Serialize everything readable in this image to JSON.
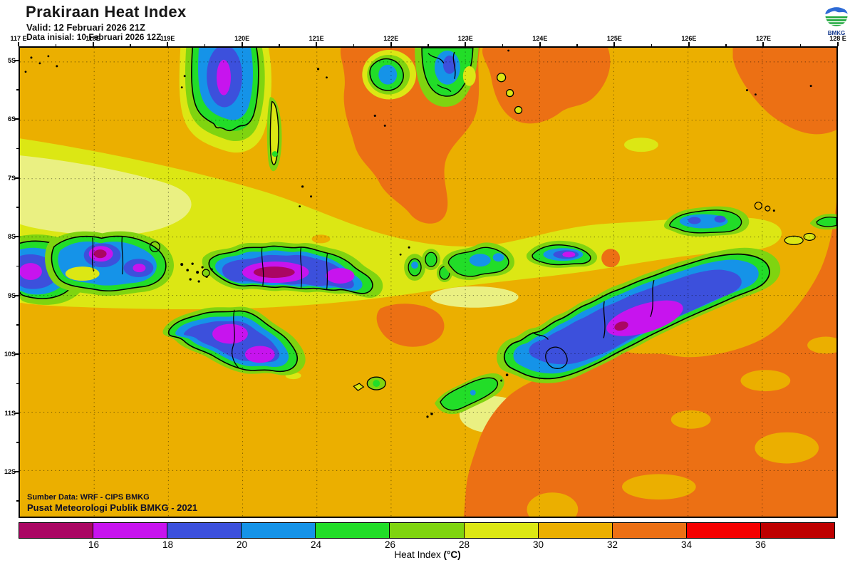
{
  "header": {
    "title": "Prakiraan Heat Index",
    "valid_line": "Valid: 12 Februari 2026 21Z",
    "init_line": "Data inisial: 10 Februari 2026 12Z"
  },
  "logo": {
    "label": "BMKG"
  },
  "map": {
    "lon_labels": [
      "117 E",
      "118E",
      "119E",
      "120E",
      "121E",
      "122E",
      "123E",
      "124E",
      "125E",
      "126E",
      "127E",
      "128 E"
    ],
    "lat_labels": [
      "5S",
      "6S",
      "7S",
      "8S",
      "9S",
      "10S",
      "11S",
      "12S"
    ],
    "source_line1": "Sumber Data: WRF - CIPS BMKG",
    "source_line2": "Pusat Meteorologi Publik BMKG - 2021"
  },
  "colorbar": {
    "title_prefix": "Heat Index ",
    "title_unit": "(°C)",
    "unit": "°C",
    "tick_labels": [
      "16",
      "18",
      "20",
      "24",
      "26",
      "28",
      "30",
      "32",
      "34",
      "36"
    ],
    "segment_colors": [
      "#AA0663",
      "#C714EE",
      "#3C50DC",
      "#1593E8",
      "#22DD28",
      "#7FD410",
      "#DCE714",
      "#EBAF00",
      "#EC7014",
      "#F40000",
      "#BE0000"
    ]
  },
  "chart_data": {
    "type": "heatmap",
    "title": "Prakiraan Heat Index",
    "colorbar_label": "Heat Index (°C)",
    "lon_range": [
      "117E",
      "128E"
    ],
    "lat_range": [
      "5S",
      "12S"
    ],
    "scale_breaks": [
      16,
      18,
      20,
      24,
      26,
      28,
      30,
      32,
      34,
      36
    ],
    "scale_colors": [
      "#AA0663",
      "#C714EE",
      "#3C50DC",
      "#1593E8",
      "#22DD28",
      "#7FD410",
      "#DCE714",
      "#EBAF00",
      "#EC7014",
      "#F40000",
      "#BE0000"
    ],
    "legend_position": "bottom",
    "notes": "Cool (blue/magenta) heat-index cores over island interiors; amber/orange sea background with yellow mid band"
  }
}
